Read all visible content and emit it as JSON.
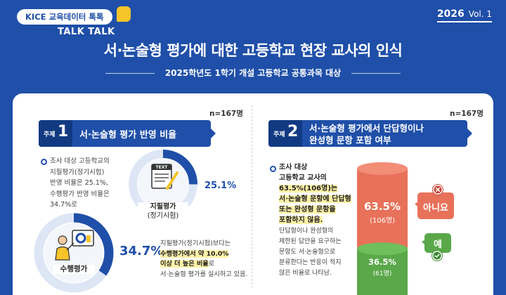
{
  "header": {
    "brand": "KICE 교육데이터 톡톡",
    "brand_sub": "TALK TALK",
    "year": "2026",
    "vol": "Vol. 1",
    "title": "서·논술형 평가에 대한 고등학교 현장 교사의 인식",
    "subtitle": "2025학년도 1학기 개설 고등학교 공통과목 대상"
  },
  "topic1": {
    "n": "n=167명",
    "tag_word": "주제",
    "tag_num": "1",
    "title": "서·논술형 평가 반영 비율",
    "desc_lines": [
      "조사 대상 고등학교의",
      "지필평가(정기시험)",
      "반영 비율은 25.1%,",
      "수행평가 반영 비율은",
      "34.7%로"
    ],
    "written_icon_text": "TEXT",
    "written_pct": "25.1%",
    "written_label_1": "지필평가",
    "written_label_2": "(정기시험)",
    "written_value": 25.1,
    "perf_pct": "34.7%",
    "perf_label": "수행평가",
    "perf_value": 34.7,
    "note_1": "지필평가(정기시험)보다는",
    "note_2": "수행평가에서 약 10.0%",
    "note_3": "이상 더 높은 비율",
    "note_3b": "로",
    "note_4": "서·논술형 평가를 실시하고 있음."
  },
  "topic2": {
    "n": "n=167명",
    "tag_word": "주제",
    "tag_num": "2",
    "title_1": "서·논술형 평가에서 단답형이나",
    "title_2": "완성형 문항 포함 여부",
    "bold_lines": [
      "조사 대상",
      "고등학교 교사의",
      "63.5%(106명)는",
      "서·논술형 문항에 단답형",
      "또는 완성형 문항을",
      "포함하지 않음."
    ],
    "desc_lines": [
      "단답형이나 완성형의",
      "제한된 답안을 요구하는",
      "문항도 서·논술형으로",
      "분류한다는 반응이 적지",
      "않은 비율로 나타남."
    ],
    "no_pct": "63.5%",
    "no_count": "(106명)",
    "no_label": "아니요",
    "no_value": 63.5,
    "yes_pct": "36.5%",
    "yes_count": "(61명)",
    "yes_label": "예",
    "yes_value": 36.5
  },
  "colors": {
    "brand_blue": "#1f4fa8",
    "accent_yellow": "#f7c42a",
    "highlight": "#fff2a8",
    "no_red": "#e8715a",
    "yes_green": "#5aa84a"
  }
}
